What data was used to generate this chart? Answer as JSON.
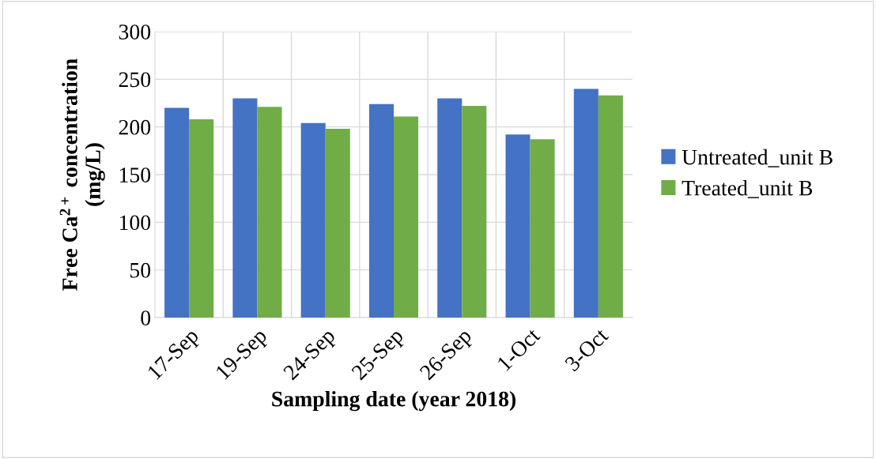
{
  "chart_data": {
    "type": "bar",
    "xlabel": "Sampling date (year 2018)",
    "ylabel": "Free Ca$^{2+}$ concentration\n(mg/L)",
    "categories": [
      "17-Sep",
      "19-Sep",
      "24-Sep",
      "25-Sep",
      "26-Sep",
      "1-Oct",
      "3-Oct"
    ],
    "series": [
      {
        "name": "Untreated_unit B",
        "color": "#4472c4",
        "values": [
          220,
          230,
          204,
          224,
          230,
          192,
          240
        ]
      },
      {
        "name": "Treated_unit B",
        "color": "#70ad47",
        "values": [
          208,
          221,
          198,
          211,
          222,
          187,
          233
        ]
      }
    ],
    "ylim": [
      0,
      300
    ],
    "yticks": [
      0,
      50,
      100,
      150,
      200,
      250,
      300
    ],
    "grid": true,
    "legend": "right"
  }
}
